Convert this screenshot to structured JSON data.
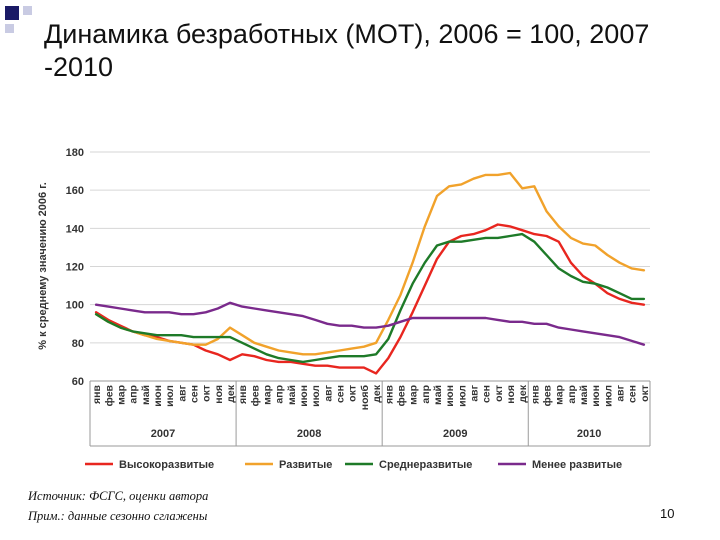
{
  "slide": {
    "title": "Динамика безработных (МОТ), 2006 = 100, 2007 -2010",
    "source": "Источник: ФСГС, оценки автора",
    "note": "Прим.: данные сезонно сглажены",
    "page_number": "10"
  },
  "chart_data": {
    "type": "line",
    "title": "",
    "ylabel": "% к среднему значению 2006 г.",
    "xlabel": "",
    "ylim": [
      60,
      180
    ],
    "yticks": [
      60,
      80,
      100,
      120,
      140,
      160,
      180
    ],
    "grid": true,
    "legend_position": "bottom",
    "months": [
      "янв",
      "фев",
      "мар",
      "апр",
      "май",
      "июн",
      "июл",
      "авг",
      "сен",
      "окт",
      "ноя",
      "дек",
      "янв",
      "фев",
      "мар",
      "апр",
      "май",
      "июн",
      "июл",
      "авг",
      "сен",
      "окт",
      "нояб",
      "дек",
      "янв",
      "фев",
      "мар",
      "апр",
      "май",
      "июн",
      "июл",
      "авг",
      "сен",
      "окт",
      "ноя",
      "дек",
      "янв",
      "фев",
      "мар",
      "апр",
      "май",
      "июн",
      "июл",
      "авг",
      "сен",
      "окт"
    ],
    "years": [
      {
        "label": "2007",
        "start": 0,
        "count": 12
      },
      {
        "label": "2008",
        "start": 12,
        "count": 12
      },
      {
        "label": "2009",
        "start": 24,
        "count": 12
      },
      {
        "label": "2010",
        "start": 36,
        "count": 10
      }
    ],
    "series": [
      {
        "name": "Высокоразвитые",
        "color": "#e8261f",
        "values": [
          96,
          92,
          89,
          86,
          84,
          83,
          81,
          80,
          79,
          76,
          74,
          71,
          74,
          73,
          71,
          70,
          70,
          69,
          68,
          68,
          67,
          67,
          67,
          64,
          72,
          83,
          96,
          110,
          124,
          133,
          136,
          137,
          139,
          142,
          141,
          139,
          137,
          136,
          133,
          122,
          115,
          111,
          106,
          103,
          101,
          100
        ]
      },
      {
        "name": "Развитые",
        "color": "#f1a22b",
        "values": [
          95,
          91,
          88,
          86,
          84,
          82,
          81,
          80,
          79,
          79,
          82,
          88,
          84,
          80,
          78,
          76,
          75,
          74,
          74,
          75,
          76,
          77,
          78,
          80,
          92,
          105,
          122,
          141,
          157,
          162,
          163,
          166,
          168,
          168,
          169,
          161,
          162,
          149,
          141,
          135,
          132,
          131,
          126,
          122,
          119,
          118
        ]
      },
      {
        "name": "Среднеразвитые",
        "color": "#1e7a28",
        "values": [
          95,
          91,
          88,
          86,
          85,
          84,
          84,
          84,
          83,
          83,
          83,
          83,
          80,
          77,
          74,
          72,
          71,
          70,
          71,
          72,
          73,
          73,
          73,
          74,
          82,
          97,
          111,
          122,
          131,
          133,
          133,
          134,
          135,
          135,
          136,
          137,
          133,
          126,
          119,
          115,
          112,
          111,
          109,
          106,
          103,
          103
        ]
      },
      {
        "name": "Менее развитые",
        "color": "#7a2a8c",
        "values": [
          100,
          99,
          98,
          97,
          96,
          96,
          96,
          95,
          95,
          96,
          98,
          101,
          99,
          98,
          97,
          96,
          95,
          94,
          92,
          90,
          89,
          89,
          88,
          88,
          89,
          91,
          93,
          93,
          93,
          93,
          93,
          93,
          93,
          92,
          91,
          91,
          90,
          90,
          88,
          87,
          86,
          85,
          84,
          83,
          81,
          79
        ]
      }
    ]
  }
}
